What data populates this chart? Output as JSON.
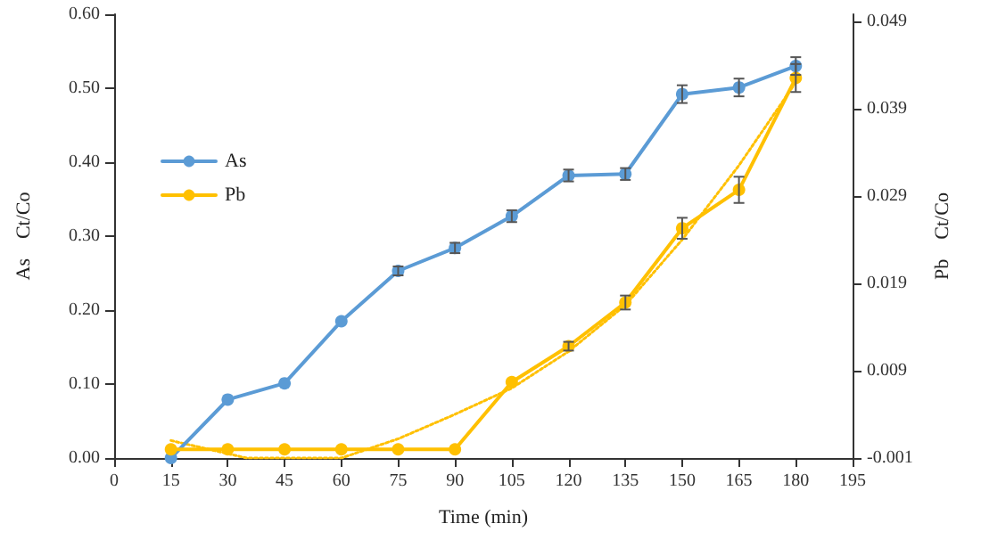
{
  "chart_data": {
    "type": "line",
    "xlabel": "Time (min)",
    "ylabel": "As    Ct/Co",
    "y2label": "Pb    Ct/Co",
    "x": [
      15,
      30,
      45,
      60,
      75,
      90,
      105,
      120,
      135,
      150,
      165,
      180
    ],
    "xlim": [
      0,
      195
    ],
    "xticks": [
      0,
      15,
      30,
      45,
      60,
      75,
      90,
      105,
      120,
      135,
      150,
      165,
      180,
      195
    ],
    "ylim": [
      0,
      0.6
    ],
    "yticks": [
      {
        "value": 0,
        "label": "0.00"
      },
      {
        "value": 0.1,
        "label": "0.10"
      },
      {
        "value": 0.2,
        "label": "0.20"
      },
      {
        "value": 0.3,
        "label": "0.30"
      },
      {
        "value": 0.4,
        "label": "0.40"
      },
      {
        "value": 0.5,
        "label": "0.50"
      },
      {
        "value": 0.6,
        "label": "0.60"
      }
    ],
    "y2lim": [
      -0.001,
      0.0498
    ],
    "y2ticks": [
      -0.001,
      0.009,
      0.019,
      0.029,
      0.039,
      0.049
    ],
    "series": [
      {
        "name": "As",
        "color": "#5b9bd5",
        "values": [
          0.0,
          0.079,
          0.101,
          0.185,
          0.253,
          0.284,
          0.327,
          0.382,
          0.384,
          0.492,
          0.501,
          0.53
        ],
        "errors": [
          null,
          null,
          null,
          null,
          0.006,
          0.007,
          0.008,
          0.008,
          0.008,
          0.012,
          0.012,
          0.012
        ]
      },
      {
        "name": "Pb",
        "color": "#ffc000",
        "axis": "y2",
        "values": [
          0.0,
          0.0,
          0.0,
          0.0,
          0.0,
          0.0,
          0.0077,
          0.0118,
          0.0168,
          0.0253,
          0.0297,
          0.0425
        ],
        "errors": [
          null,
          null,
          null,
          null,
          null,
          null,
          null,
          0.0005,
          0.0008,
          0.0012,
          0.0015,
          0.0016
        ]
      },
      {
        "type": "line",
        "color": "#ffc000",
        "axis": "y2",
        "line_style": "dotted",
        "marker": "none",
        "x": [
          15,
          35,
          60,
          75,
          90,
          105,
          120,
          135,
          150,
          165,
          180
        ],
        "values": [
          0.001,
          -0.001,
          -0.001,
          0.0012,
          0.004,
          0.007,
          0.0112,
          0.0165,
          0.024,
          0.0325,
          0.042
        ]
      }
    ],
    "marker": "circle",
    "line_style": "solid",
    "grid": false,
    "legend": "left"
  }
}
